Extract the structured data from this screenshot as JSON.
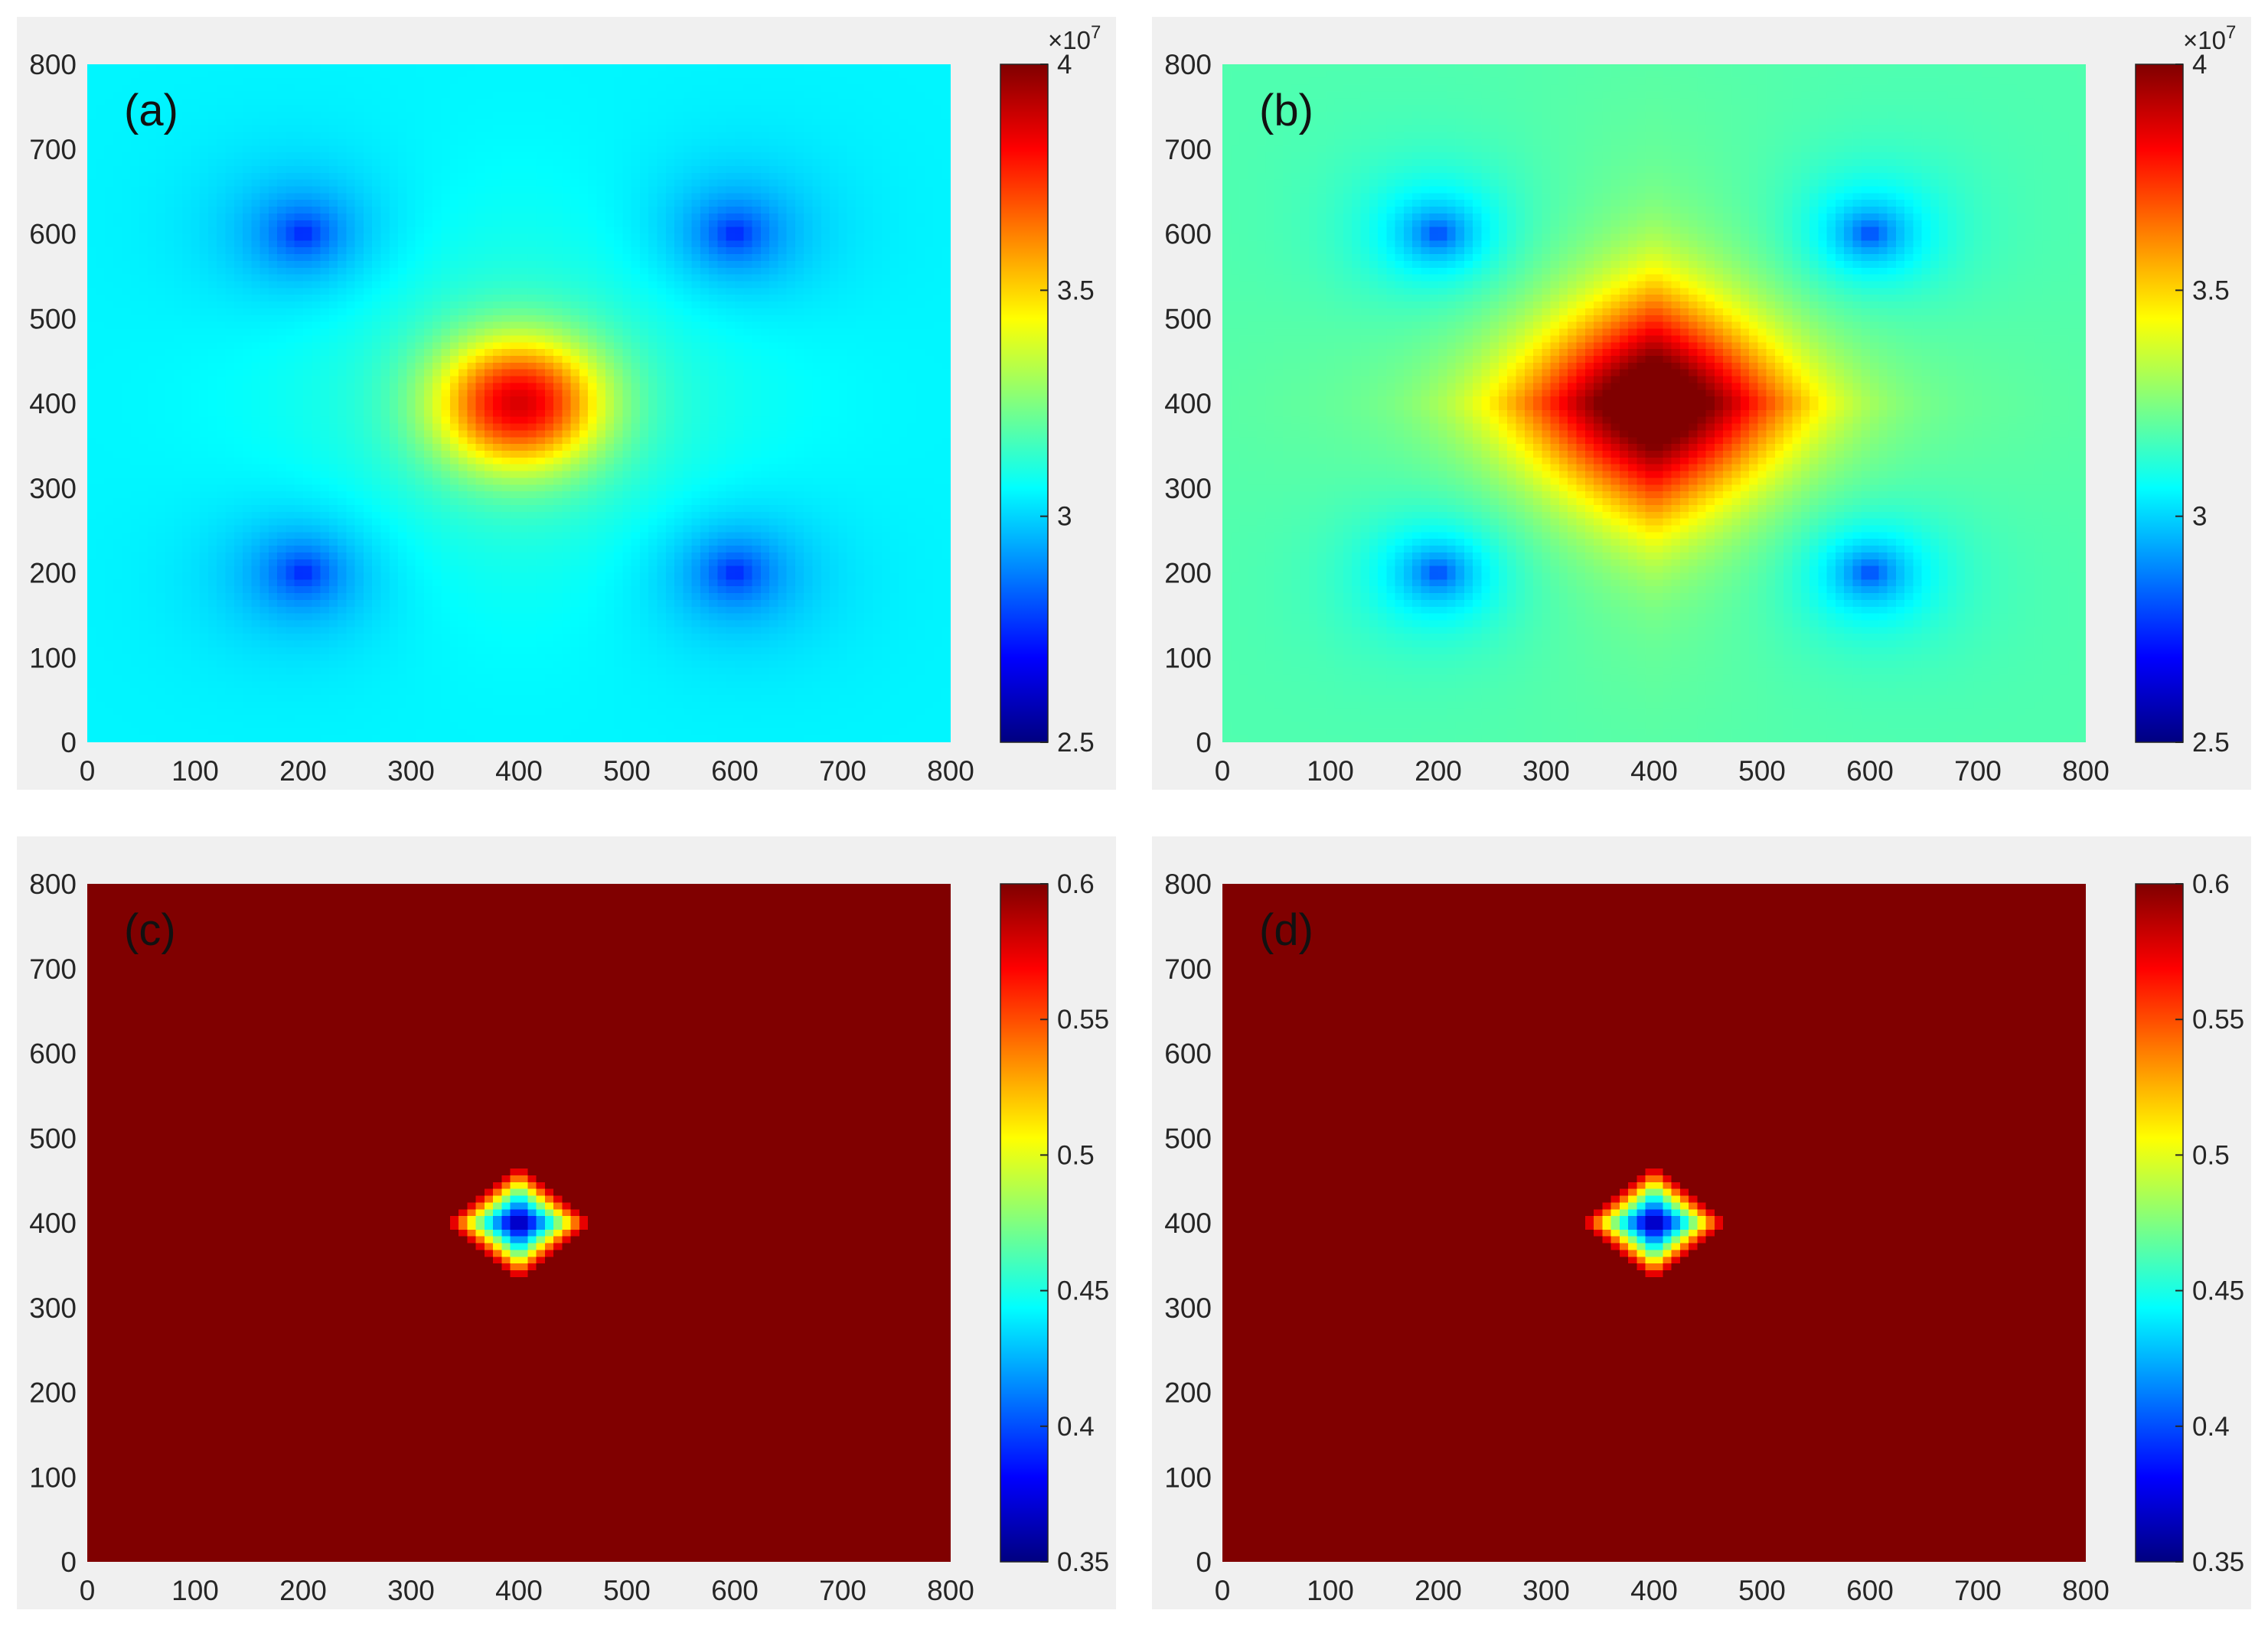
{
  "colormap": "jet",
  "colors": {
    "panel_background": "#f0f0f0",
    "axis_text": "#262626",
    "tick_line": "#262626"
  },
  "chart_data": [
    {
      "type": "heatmap",
      "panel_label": "(a)",
      "x": [
        0,
        800
      ],
      "y": [
        0,
        800
      ],
      "xlim": [
        0,
        800
      ],
      "ylim": [
        0,
        800
      ],
      "xticks": [
        0,
        100,
        200,
        300,
        400,
        500,
        600,
        700,
        800
      ],
      "xticklabels": [
        "0",
        "100",
        "200",
        "300",
        "400",
        "500",
        "600",
        "700",
        "800"
      ],
      "yticks": [
        0,
        100,
        200,
        300,
        400,
        500,
        600,
        700,
        800
      ],
      "yticklabels": [
        "0",
        "100",
        "200",
        "300",
        "400",
        "500",
        "600",
        "700",
        "800"
      ],
      "clim": [
        25000000,
        40000000
      ],
      "colorbar": {
        "ticks": [
          25000000,
          30000000,
          35000000,
          40000000
        ],
        "ticklabels": [
          "2.5",
          "3",
          "3.5",
          "4"
        ],
        "exponent_base": "×10",
        "exponent_power": "7"
      },
      "field": {
        "background": 30500000,
        "peak": {
          "x": 400,
          "y": 400,
          "value": 37600000,
          "radius": 75,
          "shape": "circular"
        },
        "ring": {
          "value": 1100000,
          "radius": 210
        },
        "wells": [
          {
            "x": 200,
            "y": 600,
            "value": 27000000
          },
          {
            "x": 600,
            "y": 600,
            "value": 27000000
          },
          {
            "x": 200,
            "y": 200,
            "value": 27000000
          },
          {
            "x": 600,
            "y": 200,
            "value": 27000000
          }
        ],
        "well_radius": 45
      }
    },
    {
      "type": "heatmap",
      "panel_label": "(b)",
      "x": [
        0,
        800
      ],
      "y": [
        0,
        800
      ],
      "xlim": [
        0,
        800
      ],
      "ylim": [
        0,
        800
      ],
      "xticks": [
        0,
        100,
        200,
        300,
        400,
        500,
        600,
        700,
        800
      ],
      "xticklabels": [
        "0",
        "100",
        "200",
        "300",
        "400",
        "500",
        "600",
        "700",
        "800"
      ],
      "yticks": [
        0,
        100,
        200,
        300,
        400,
        500,
        600,
        700,
        800
      ],
      "yticklabels": [
        "0",
        "100",
        "200",
        "300",
        "400",
        "500",
        "600",
        "700",
        "800"
      ],
      "clim": [
        25000000,
        40000000
      ],
      "colorbar": {
        "ticks": [
          25000000,
          30000000,
          35000000,
          40000000
        ],
        "ticklabels": [
          "2.5",
          "3",
          "3.5",
          "4"
        ],
        "exponent_base": "×10",
        "exponent_power": "7"
      },
      "field": {
        "background": 31800000,
        "peak": {
          "x": 400,
          "y": 400,
          "value": 40500000,
          "radius": 130,
          "shape": "diamond"
        },
        "ring": {
          "value": 900000,
          "radius": 300
        },
        "wells": [
          {
            "x": 200,
            "y": 600,
            "value": 27500000
          },
          {
            "x": 600,
            "y": 600,
            "value": 27500000
          },
          {
            "x": 200,
            "y": 200,
            "value": 27500000
          },
          {
            "x": 600,
            "y": 200,
            "value": 27500000
          }
        ],
        "well_radius": 45
      }
    },
    {
      "type": "heatmap",
      "panel_label": "(c)",
      "x": [
        0,
        800
      ],
      "y": [
        0,
        800
      ],
      "xlim": [
        0,
        800
      ],
      "ylim": [
        0,
        800
      ],
      "xticks": [
        0,
        100,
        200,
        300,
        400,
        500,
        600,
        700,
        800
      ],
      "xticklabels": [
        "0",
        "100",
        "200",
        "300",
        "400",
        "500",
        "600",
        "700",
        "800"
      ],
      "yticks": [
        0,
        100,
        200,
        300,
        400,
        500,
        600,
        700,
        800
      ],
      "yticklabels": [
        "0",
        "100",
        "200",
        "300",
        "400",
        "500",
        "600",
        "700",
        "800"
      ],
      "clim": [
        0.35,
        0.6
      ],
      "colorbar": {
        "ticks": [
          0.35,
          0.4,
          0.45,
          0.5,
          0.55,
          0.6
        ],
        "ticklabels": [
          "0.35",
          "0.4",
          "0.45",
          "0.5",
          "0.55",
          "0.6"
        ],
        "exponent_base": "",
        "exponent_power": ""
      },
      "field": {
        "background": 0.6,
        "dip": {
          "x": 400,
          "y": 400,
          "min": 0.35,
          "radius": 70,
          "shape": "diamond"
        }
      }
    },
    {
      "type": "heatmap",
      "panel_label": "(d)",
      "x": [
        0,
        800
      ],
      "y": [
        0,
        800
      ],
      "xlim": [
        0,
        800
      ],
      "ylim": [
        0,
        800
      ],
      "xticks": [
        0,
        100,
        200,
        300,
        400,
        500,
        600,
        700,
        800
      ],
      "xticklabels": [
        "0",
        "100",
        "200",
        "300",
        "400",
        "500",
        "600",
        "700",
        "800"
      ],
      "yticks": [
        0,
        100,
        200,
        300,
        400,
        500,
        600,
        700,
        800
      ],
      "yticklabels": [
        "0",
        "100",
        "200",
        "300",
        "400",
        "500",
        "600",
        "700",
        "800"
      ],
      "clim": [
        0.35,
        0.6
      ],
      "colorbar": {
        "ticks": [
          0.35,
          0.4,
          0.45,
          0.5,
          0.55,
          0.6
        ],
        "ticklabels": [
          "0.35",
          "0.4",
          "0.45",
          "0.5",
          "0.55",
          "0.6"
        ],
        "exponent_base": "",
        "exponent_power": ""
      },
      "field": {
        "background": 0.6,
        "dip": {
          "x": 400,
          "y": 400,
          "min": 0.35,
          "radius": 70,
          "shape": "diamond"
        }
      }
    }
  ]
}
